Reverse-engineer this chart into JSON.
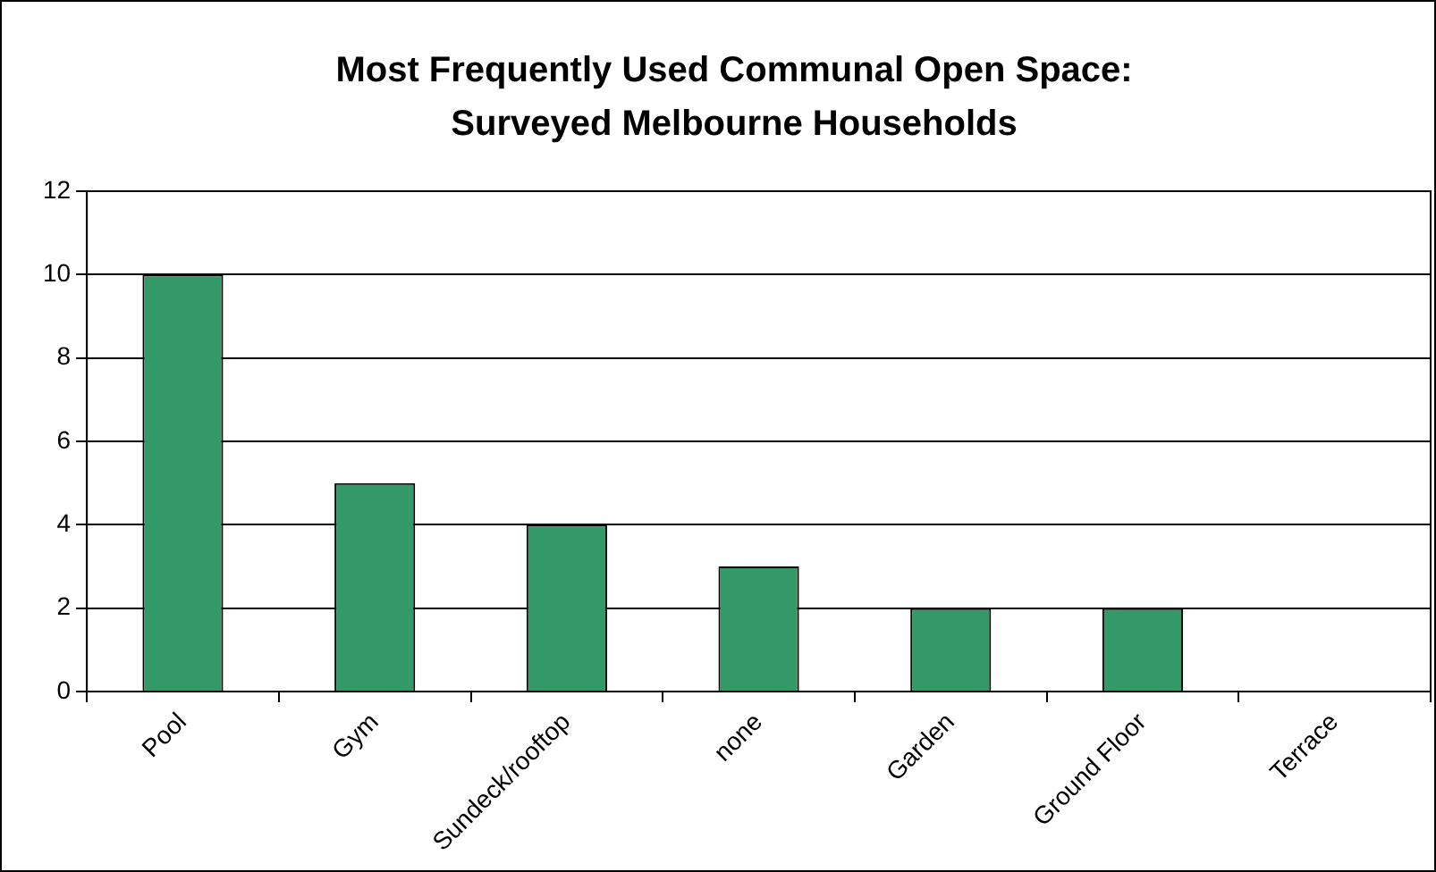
{
  "chart_data": {
    "type": "bar",
    "title": "Most Frequently Used Communal Open Space:\nSurveyed Melbourne Households",
    "categories": [
      "Pool",
      "Gym",
      "Sundeck/rooftop",
      "none",
      "Garden",
      "Ground Floor",
      "Terrace"
    ],
    "values": [
      10,
      5,
      4,
      3,
      2,
      2,
      0
    ],
    "color": "#339966",
    "ylim": [
      0,
      12
    ],
    "yticks": [
      0,
      2,
      4,
      6,
      8,
      10,
      12
    ],
    "grid": "y",
    "legend": false
  }
}
